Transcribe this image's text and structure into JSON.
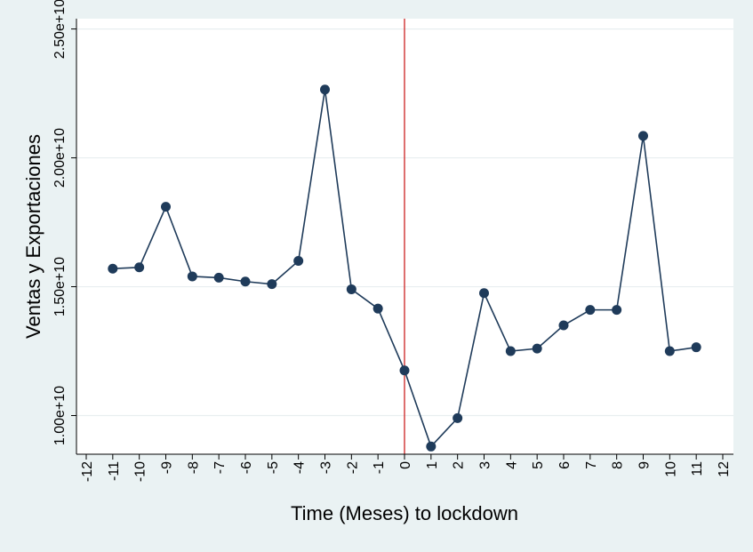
{
  "chart_data": {
    "type": "line",
    "title": "",
    "xlabel": "Time (Meses) to lockdown",
    "ylabel": "Ventas y Exportaciones",
    "xlim": [
      -12,
      12
    ],
    "ylim": [
      8500000000.0,
      25400000000.0
    ],
    "x_ticks": [
      "-12",
      "-11",
      "-10",
      "-9",
      "-8",
      "-7",
      "-6",
      "-5",
      "-4",
      "-3",
      "-2",
      "-1",
      "0",
      "1",
      "2",
      "3",
      "4",
      "5",
      "6",
      "7",
      "8",
      "9",
      "10",
      "11",
      "12"
    ],
    "y_ticks": [
      {
        "value": 10000000000.0,
        "label": "1.00e+10"
      },
      {
        "value": 15000000000.0,
        "label": "1.50e+10"
      },
      {
        "value": 20000000000.0,
        "label": "2.00e+10"
      },
      {
        "value": 25000000000.0,
        "label": "2.50e+10"
      }
    ],
    "reference_line": {
      "x": 0,
      "color": "#cc2222"
    },
    "series": [
      {
        "color": "#1f3b5a",
        "x": [
          -11,
          -10,
          -9,
          -8,
          -7,
          -6,
          -5,
          -4,
          -3,
          -2,
          -1,
          0,
          1,
          2,
          3,
          4,
          5,
          6,
          7,
          8,
          9,
          10,
          11
        ],
        "values": [
          15700000000.0,
          15750000000.0,
          18100000000.0,
          15400000000.0,
          15350000000.0,
          15200000000.0,
          15100000000.0,
          16000000000.0,
          22650000000.0,
          14900000000.0,
          14150000000.0,
          11750000000.0,
          8800000000.0,
          9900000000.0,
          14750000000.0,
          12500000000.0,
          12600000000.0,
          13500000000.0,
          14100000000.0,
          14100000000.0,
          20850000000.0,
          12500000000.0,
          12650000000.0
        ]
      }
    ],
    "grid": "horizontal",
    "background": "#eaf2f3",
    "plot_background": "#ffffff"
  }
}
